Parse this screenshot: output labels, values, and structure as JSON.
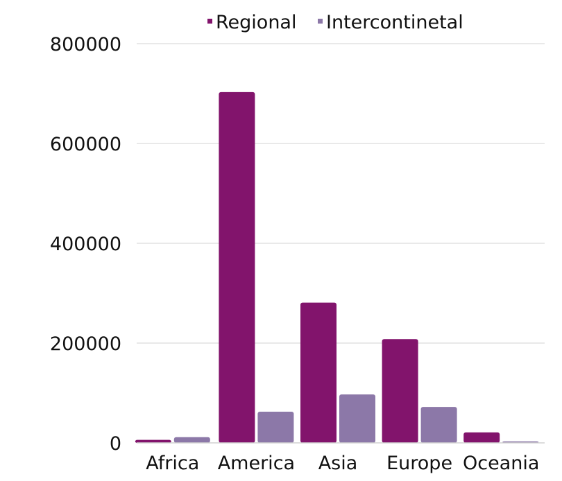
{
  "chart_data": {
    "type": "bar",
    "title": "",
    "xlabel": "",
    "ylabel": "",
    "categories": [
      "Africa",
      "America",
      "Asia",
      "Europe",
      "Oceania"
    ],
    "series": [
      {
        "name": "Regional",
        "color": "#82146c",
        "values": [
          6000,
          703000,
          281000,
          208000,
          21000
        ]
      },
      {
        "name": "Intercontinetal",
        "color": "#8c78a8",
        "values": [
          11500,
          62500,
          97000,
          72000,
          3000
        ]
      }
    ],
    "ylim": [
      0,
      800000
    ],
    "yticks": [
      "0",
      "200000",
      "400000",
      "600000",
      "800000"
    ],
    "grid": true,
    "legend": "top"
  }
}
